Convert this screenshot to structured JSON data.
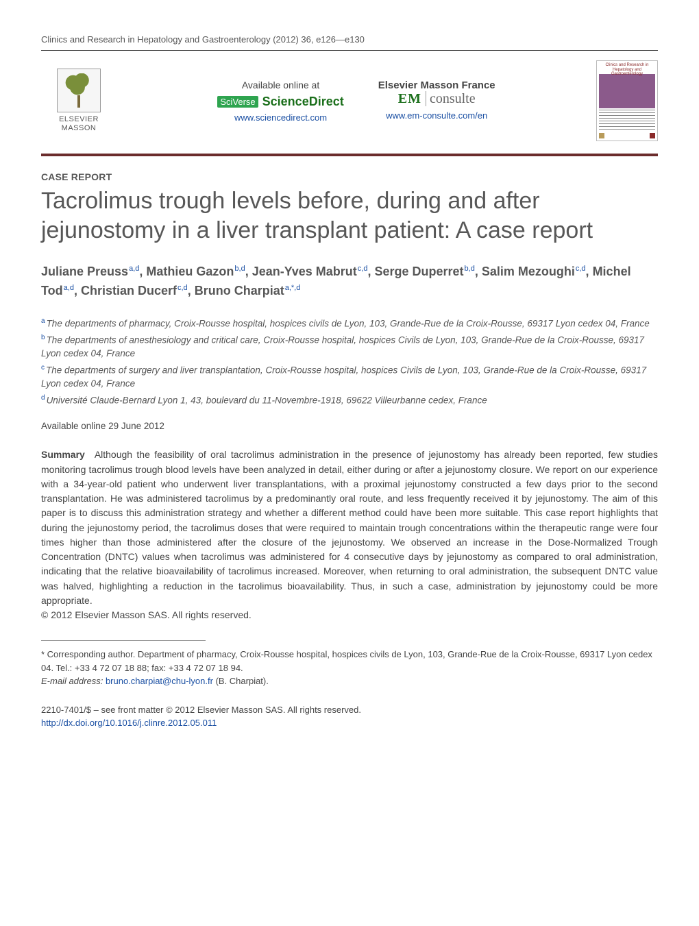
{
  "running_head": "Clinics and Research in Hepatology and Gastroenterology (2012) 36, e126—e130",
  "header": {
    "publisher_top": "ELSEVIER",
    "publisher_bottom": "MASSON",
    "sd_label": "Available online at",
    "sd_brand_prefix": "SciVerse",
    "sd_brand": "ScienceDirect",
    "sd_url": "www.sciencedirect.com",
    "em_label": "Elsevier Masson France",
    "em_prefix": "EM",
    "em_brand": "consulte",
    "em_url": "www.em-consulte.com/en",
    "cover_title": "Clinics and Research in Hepatology and Gastroenterology"
  },
  "section_label": "CASE REPORT",
  "title": "Tacrolimus trough levels before, during and after jejunostomy in a liver transplant patient: A case report",
  "authors": [
    {
      "name": "Juliane Preuss",
      "aff": "a,d"
    },
    {
      "name": "Mathieu Gazon",
      "aff": "b,d"
    },
    {
      "name": "Jean-Yves Mabrut",
      "aff": "c,d"
    },
    {
      "name": "Serge Duperret",
      "aff": "b,d"
    },
    {
      "name": "Salim Mezoughi",
      "aff": "c,d"
    },
    {
      "name": "Michel Tod",
      "aff": "a,d"
    },
    {
      "name": "Christian Ducerf",
      "aff": "c,d"
    },
    {
      "name": "Bruno Charpiat",
      "aff": "a,*,d"
    }
  ],
  "affiliations": {
    "a": "The departments of pharmacy, Croix-Rousse hospital, hospices civils de Lyon, 103, Grande-Rue de la Croix-Rousse, 69317 Lyon cedex 04, France",
    "b": "The departments of anesthesiology and critical care, Croix-Rousse hospital, hospices Civils de Lyon, 103, Grande-Rue de la Croix-Rousse, 69317 Lyon cedex 04, France",
    "c": "The departments of surgery and liver transplantation, Croix-Rousse hospital, hospices Civils de Lyon, 103, Grande-Rue de la Croix-Rousse, 69317 Lyon cedex 04, France",
    "d": "Université Claude-Bernard Lyon 1, 43, boulevard du 11-Novembre-1918, 69622 Villeurbanne cedex, France"
  },
  "available_online": "Available online 29 June 2012",
  "summary_label": "Summary",
  "summary_body": "Although the feasibility of oral tacrolimus administration in the presence of jejunostomy has already been reported, few studies monitoring tacrolimus trough blood levels have been analyzed in detail, either during or after a jejunostomy closure. We report on our experience with a 34-year-old patient who underwent liver transplantations, with a proximal jejunostomy constructed a few days prior to the second transplantation. He was administered tacrolimus by a predominantly oral route, and less frequently received it by jejunostomy. The aim of this paper is to discuss this administration strategy and whether a different method could have been more suitable. This case report highlights that during the jejunostomy period, the tacrolimus doses that were required to maintain trough concentrations within the therapeutic range were four times higher than those administered after the closure of the jejunostomy. We observed an increase in the Dose-Normalized Trough Concentration (DNTC) values when tacrolimus was administered for 4 consecutive days by jejunostomy as compared to oral administration, indicating that the relative bioavailability of tacrolimus increased. Moreover, when returning to oral administration, the subsequent DNTC value was halved, highlighting a reduction in the tacrolimus bioavailability. Thus, in such a case, administration by jejunostomy could be more appropriate.",
  "summary_copyright": "© 2012 Elsevier Masson SAS. All rights reserved.",
  "corresponding": {
    "text": "Corresponding author. Department of pharmacy, Croix-Rousse hospital, hospices civils de Lyon, 103, Grande-Rue de la Croix-Rousse, 69317 Lyon cedex 04. Tel.: +33 4 72 07 18 88; fax: +33 4 72 07 18 94.",
    "email_label": "E-mail address:",
    "email": "bruno.charpiat@chu-lyon.fr",
    "email_attrib": "(B. Charpiat)."
  },
  "front_matter": "2210-7401/$ – see front matter © 2012 Elsevier Masson SAS. All rights reserved.",
  "doi": "http://dx.doi.org/10.1016/j.clinre.2012.05.011",
  "colors": {
    "rule": "#6b2c2c",
    "link": "#1a4fa3",
    "body_text": "#444444",
    "heading_text": "#575757"
  },
  "typography": {
    "title_fontsize_pt": 26,
    "authors_fontsize_pt": 14,
    "body_fontsize_pt": 10.5,
    "font_family": "Arial"
  }
}
